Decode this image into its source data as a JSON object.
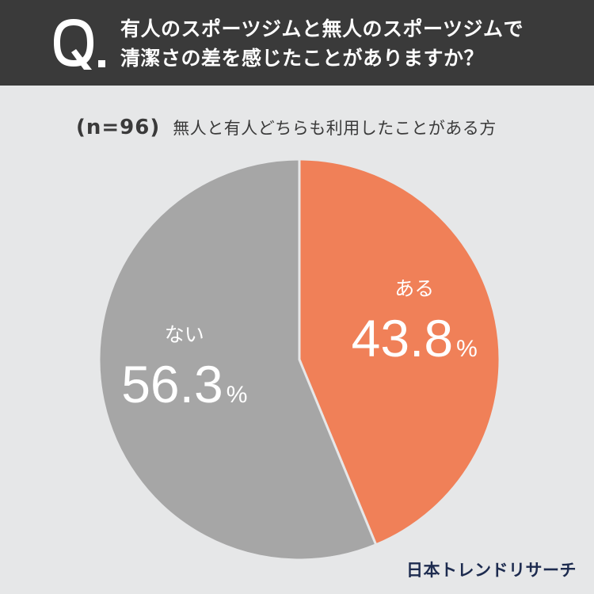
{
  "question": {
    "mark": "Q.",
    "line1": "有人のスポーツジムと無人のスポーツジムで",
    "line2": "清潔さの差を感じたことがありますか？"
  },
  "subtitle": {
    "sample": "(n=96)",
    "group": "無人と有人どちらも利用したことがある方"
  },
  "chart_data": {
    "type": "pie",
    "start": "12 o'clock",
    "direction": "clockwise",
    "slices": [
      {
        "label": "ある",
        "value": 43.8,
        "value_text": "43.8",
        "unit": "%",
        "color": "#f08058"
      },
      {
        "label": "ない",
        "value": 56.3,
        "value_text": "56.3",
        "unit": "%",
        "color": "#a6a6a6"
      }
    ],
    "separator_color": "#e6e7e8",
    "label_color": "#ffffff"
  },
  "branding": {
    "logo": "日本トレンドリサーチ"
  }
}
